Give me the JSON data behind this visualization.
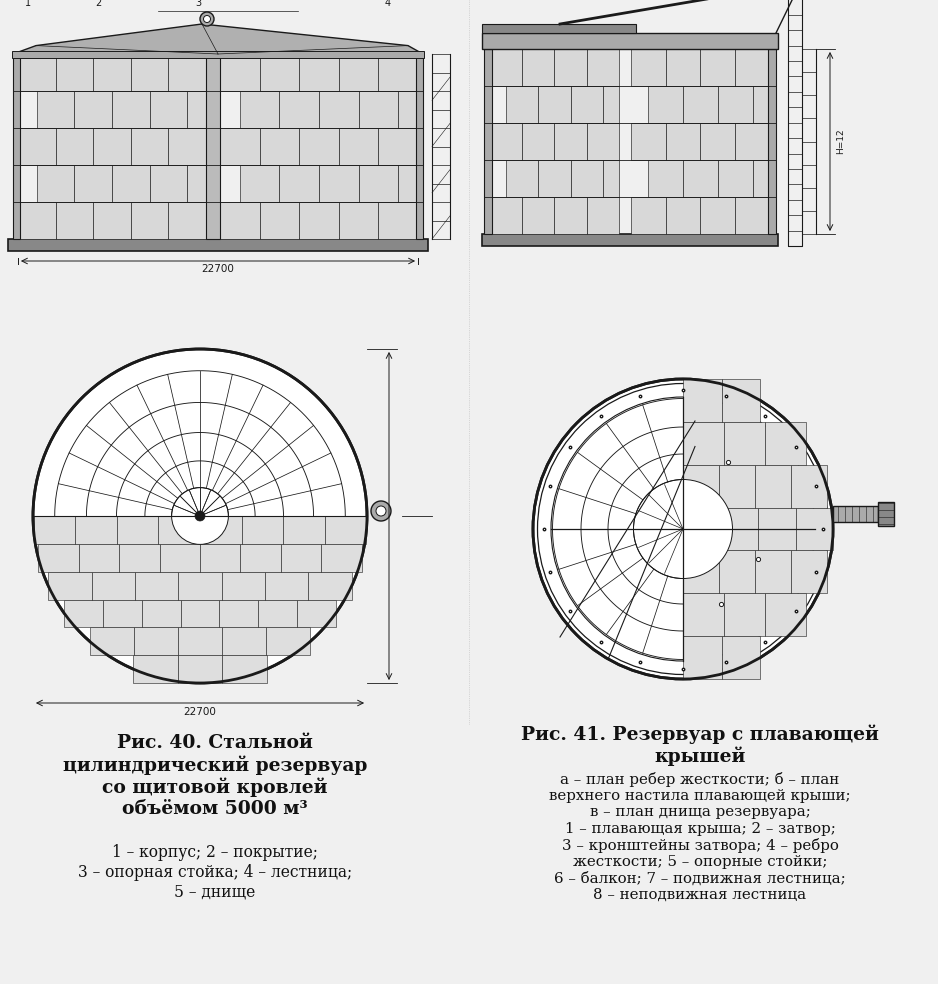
{
  "bg_color": "#f0f0f0",
  "title_left": "Рис. 40. Стальной\nцилиндрический резервуар\nсо щитовой кровлей\nобъёмом 5000 м³",
  "caption_left": "1 – корпус; 2 – покрытие;\n3 – опорная стойка; 4 – лестница;\n5 – днище",
  "title_right": "Рис. 41. Резервуар с плавающей\nкрышей",
  "caption_right": "а – план ребер жесткости; б – план\nверхнего настила плавающей крыши;\nв – план днища резервуара;\n1 – плавающая крыша; 2 – затвор;\n3 – кронштейны затвора; 4 – ребро\nжесткости; 5 – опорные стойки;\n6 – балкон; 7 – подвижная лестница;\n8 – неподвижная лестница",
  "line_color": "#1a1a1a",
  "wall_color": "#d8d8d8",
  "metal_color": "#aaaaaa",
  "dark_metal": "#888888"
}
